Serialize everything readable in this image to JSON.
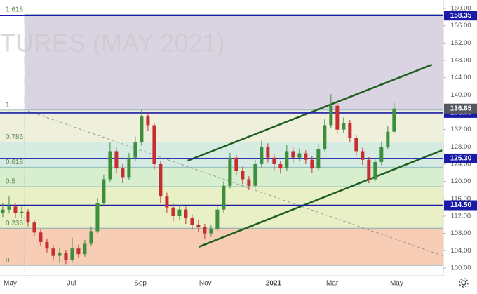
{
  "chart_data": {
    "type": "candlestick",
    "watermark": "TURES (MAY 2021)",
    "up_color": "#3d8f3d",
    "down_color": "#c62f2f",
    "candles": {
      "open": [
        112.8,
        113.5,
        114.2,
        112.8,
        113.0,
        110.5,
        108.2,
        106.0,
        104.5,
        102.8,
        103.5,
        101.8,
        104.5,
        103.2,
        105.6,
        108.5,
        115.0,
        120.5,
        127.0,
        123.0,
        121.0,
        125.5,
        129.0,
        135.0,
        133.0,
        124.0,
        116.5,
        114.0,
        112.0,
        113.5,
        111.5,
        110.0,
        109.5,
        108.0,
        109.0,
        113.5,
        119.0,
        125.5,
        122.5,
        120.5,
        119.0,
        124.0,
        128.0,
        125.5,
        124.0,
        123.0,
        127.0,
        125.5,
        126.5,
        125.0,
        123.0,
        127.5,
        133.0,
        137.5,
        132.0,
        133.5,
        130.0,
        127.0,
        125.0,
        120.5,
        124.5,
        128.0,
        131.5
      ],
      "high": [
        115.0,
        116.5,
        115.0,
        114.2,
        113.6,
        111.2,
        108.9,
        106.8,
        105.3,
        104.6,
        104.2,
        107.0,
        105.4,
        106.5,
        109.6,
        116.2,
        121.6,
        129.0,
        127.8,
        124.0,
        126.6,
        130.4,
        136.5,
        136.0,
        133.6,
        124.6,
        117.4,
        115.0,
        114.6,
        114.2,
        112.4,
        111.2,
        110.2,
        110.0,
        114.4,
        120.0,
        126.6,
        126.2,
        123.4,
        121.2,
        125.0,
        129.4,
        128.8,
        126.4,
        124.8,
        128.4,
        127.8,
        127.6,
        127.2,
        125.8,
        128.6,
        134.4,
        140.2,
        138.4,
        134.8,
        134.2,
        130.8,
        127.8,
        125.6,
        125.4,
        129.2,
        132.8,
        138.2
      ],
      "low": [
        111.8,
        112.6,
        111.5,
        111.6,
        109.6,
        107.4,
        105.2,
        103.6,
        101.7,
        101.2,
        100.9,
        101.2,
        102.4,
        102.6,
        105.0,
        108.0,
        114.2,
        119.8,
        121.8,
        119.6,
        120.4,
        124.6,
        128.2,
        131.6,
        122.8,
        115.0,
        112.8,
        110.8,
        111.2,
        110.2,
        108.8,
        108.4,
        106.8,
        107.2,
        108.6,
        112.8,
        118.4,
        121.4,
        119.4,
        118.0,
        118.4,
        123.2,
        124.4,
        122.6,
        121.8,
        122.4,
        124.4,
        124.6,
        124.0,
        122.0,
        122.4,
        127.0,
        132.4,
        131.0,
        131.2,
        129.0,
        126.0,
        123.8,
        119.6,
        120.0,
        123.8,
        127.4,
        131.0
      ],
      "close": [
        113.5,
        114.2,
        112.8,
        113.0,
        110.5,
        108.2,
        106.0,
        104.5,
        102.8,
        103.5,
        101.8,
        104.5,
        103.2,
        105.6,
        108.5,
        115.0,
        120.5,
        127.0,
        123.0,
        121.0,
        125.5,
        129.0,
        135.0,
        133.0,
        124.0,
        116.5,
        114.0,
        112.0,
        113.5,
        111.5,
        110.0,
        109.5,
        108.0,
        109.0,
        113.5,
        119.0,
        125.5,
        122.5,
        120.5,
        119.0,
        124.0,
        128.0,
        125.5,
        124.0,
        123.0,
        127.0,
        125.5,
        126.5,
        125.0,
        123.0,
        127.5,
        133.0,
        137.5,
        132.0,
        133.5,
        130.0,
        127.0,
        125.0,
        120.5,
        124.5,
        128.0,
        131.5,
        136.85
      ]
    },
    "xlim": [
      -0.44,
      69.8
    ],
    "xticks": [
      {
        "value": 0.1,
        "label": "May"
      },
      {
        "value": 10.9,
        "label": "Jul"
      },
      {
        "value": 21.8,
        "label": "Sep"
      },
      {
        "value": 32.1,
        "label": "Nov"
      },
      {
        "value": 42.9,
        "label": "2021"
      },
      {
        "value": 52.2,
        "label": "Mar"
      },
      {
        "value": 62.4,
        "label": "May"
      }
    ],
    "ylim": [
      98.2,
      161.95
    ],
    "yticks": [
      {
        "value": 100,
        "label": "100.00"
      },
      {
        "value": 104,
        "label": "104.00"
      },
      {
        "value": 108,
        "label": "108.00"
      },
      {
        "value": 112,
        "label": "112.00"
      },
      {
        "value": 116,
        "label": "116.00"
      },
      {
        "value": 120,
        "label": "120.00"
      },
      {
        "value": 124,
        "label": "124.00"
      },
      {
        "value": 128,
        "label": "128.00"
      },
      {
        "value": 132,
        "label": "132.00"
      },
      {
        "value": 136,
        "label": "136.00"
      },
      {
        "value": 140,
        "label": "140.00"
      },
      {
        "value": 144,
        "label": "144.00"
      },
      {
        "value": 148,
        "label": "148.00"
      },
      {
        "value": 152,
        "label": "152.00"
      },
      {
        "value": 156,
        "label": "156.00"
      },
      {
        "value": 160,
        "label": "160.00"
      }
    ],
    "fib": [
      {
        "ratio": 1.618,
        "price": 158.6,
        "color": "#dad4e2"
      },
      {
        "ratio": 1,
        "price": 136.5,
        "color": "#eef0dc"
      },
      {
        "ratio": 0.786,
        "price": 129.1,
        "color": "#d6ece3"
      },
      {
        "ratio": 0.618,
        "price": 123.3,
        "color": "#d7eecf"
      },
      {
        "ratio": 0.5,
        "price": 118.8,
        "color": "#e9f0c6"
      },
      {
        "ratio": 0.236,
        "price": 109.2,
        "color": "#f7cdb5"
      },
      {
        "ratio": 0,
        "price": 100.6,
        "color": "#f7cdb5"
      }
    ],
    "price_lines_color": "#1a1aa8",
    "price_lines": [
      158.35,
      135.85,
      {
        "value": 125.3,
        "label": "125.30"
      },
      {
        "value": 114.5,
        "label": "114.50"
      }
    ],
    "last_price": 136.85,
    "last_price_color": "#55595f",
    "trendlines": [
      {
        "color": "#1f5e1f",
        "x": [
          29.3,
          68.0
        ],
        "y": [
          124.8,
          147.0
        ]
      },
      {
        "color": "#1f5e1f",
        "x": [
          31.1,
          69.6
        ],
        "y": [
          104.9,
          127.2
        ]
      },
      {
        "color": "#9a9a9a",
        "dashed": true,
        "x": [
          4.0,
          69.8
        ],
        "y": [
          136.3,
          102.8
        ]
      }
    ]
  }
}
